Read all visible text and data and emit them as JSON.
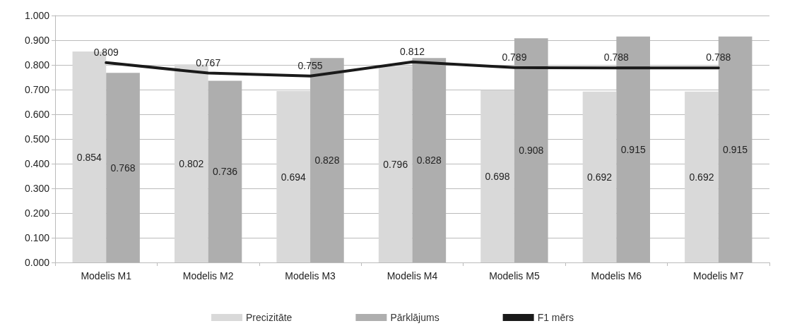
{
  "chart_data": {
    "type": "bar",
    "categories": [
      "Modelis M1",
      "Modelis M2",
      "Modelis M3",
      "Modelis M4",
      "Modelis M5",
      "Modelis M6",
      "Modelis M7"
    ],
    "series": [
      {
        "name": "Precizitāte",
        "color": "#d9d9d9",
        "values": [
          0.854,
          0.802,
          0.694,
          0.796,
          0.698,
          0.692,
          0.692
        ]
      },
      {
        "name": "Pārklājums",
        "color": "#aeaeae",
        "values": [
          0.768,
          0.736,
          0.828,
          0.828,
          0.908,
          0.915,
          0.915
        ]
      },
      {
        "name": "F1 mērs",
        "type": "line",
        "color": "#1a1a1a",
        "values": [
          0.809,
          0.767,
          0.755,
          0.812,
          0.789,
          0.788,
          0.788
        ]
      }
    ],
    "ylim": [
      0,
      1
    ],
    "yticks": [
      {
        "value": 0,
        "label": "0.000"
      },
      {
        "value": 0.1,
        "label": "0.100"
      },
      {
        "value": 0.2,
        "label": "0.200"
      },
      {
        "value": 0.3,
        "label": "0.300"
      },
      {
        "value": 0.4,
        "label": "0.400"
      },
      {
        "value": 0.5,
        "label": "0.500"
      },
      {
        "value": 0.6,
        "label": "0.600"
      },
      {
        "value": 0.7,
        "label": "0.700"
      },
      {
        "value": 0.8,
        "label": "0.800"
      },
      {
        "value": 0.9,
        "label": "0.900"
      },
      {
        "value": 1,
        "label": "1.000"
      }
    ],
    "grid": "y",
    "legend": "bottom",
    "data_labels": true,
    "marker": "none"
  }
}
